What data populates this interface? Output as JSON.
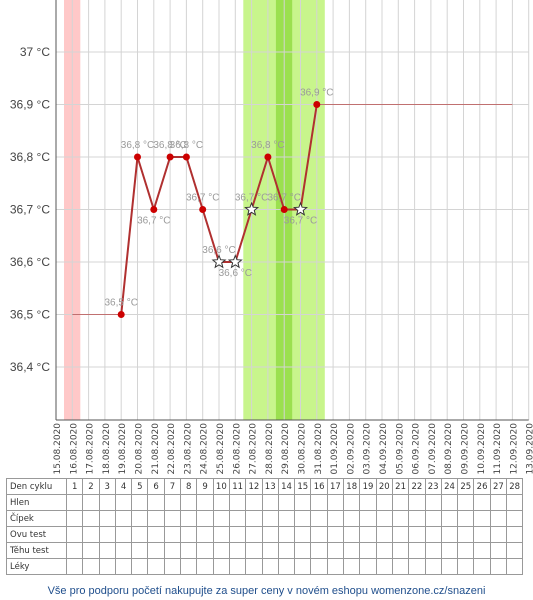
{
  "chart_data": {
    "type": "line",
    "y_axis": {
      "ticks": [
        "37 °C",
        "36,9 °C",
        "36,8 °C",
        "36,7 °C",
        "36,6 °C",
        "36,5 °C",
        "36,4 °C"
      ],
      "min": 36.3,
      "max": 37.1
    },
    "x_dates": [
      "15.08.2020",
      "16.08.2020",
      "17.08.2020",
      "18.08.2020",
      "19.08.2020",
      "20.08.2020",
      "21.08.2020",
      "22.08.2020",
      "23.08.2020",
      "24.08.2020",
      "25.08.2020",
      "26.08.2020",
      "27.08.2020",
      "28.08.2020",
      "29.08.2020",
      "30.08.2020",
      "31.08.2020",
      "01.09.2020",
      "02.09.2020",
      "03.09.2020",
      "04.09.2020",
      "05.09.2020",
      "06.09.2020",
      "07.09.2020",
      "08.09.2020",
      "09.09.2020",
      "10.09.2020",
      "11.09.2020",
      "12.09.2020",
      "13.09.2020"
    ],
    "series": [
      {
        "values": [
          {
            "date": "19.08.2020",
            "value": 36.5,
            "label": "36,5 °C",
            "marker": "dot"
          },
          {
            "date": "20.08.2020",
            "value": 36.8,
            "label": "36,8 °C",
            "marker": "dot"
          },
          {
            "date": "21.08.2020",
            "value": 36.7,
            "label": "36,7 °C",
            "marker": "dot"
          },
          {
            "date": "22.08.2020",
            "value": 36.8,
            "label": "36,8 °C",
            "marker": "dot"
          },
          {
            "date": "23.08.2020",
            "value": 36.8,
            "label": "36,8 °C",
            "marker": "dot"
          },
          {
            "date": "24.08.2020",
            "value": 36.7,
            "label": "36,7 °C",
            "marker": "dot"
          },
          {
            "date": "25.08.2020",
            "value": 36.6,
            "label": "36,6 °C",
            "marker": "star"
          },
          {
            "date": "26.08.2020",
            "value": 36.6,
            "label": "36,6 °C",
            "marker": "star"
          },
          {
            "date": "27.08.2020",
            "value": 36.7,
            "label": "36,7 °C",
            "marker": "star"
          },
          {
            "date": "28.08.2020",
            "value": 36.8,
            "label": "36,8 °C",
            "marker": "dot"
          },
          {
            "date": "29.08.2020",
            "value": 36.7,
            "label": "36,7 °C",
            "marker": "dot"
          },
          {
            "date": "30.08.2020",
            "value": 36.7,
            "label": "36,7 °C",
            "marker": "star"
          },
          {
            "date": "31.08.2020",
            "value": 36.9,
            "label": "36,9 °C",
            "marker": "dot"
          }
        ]
      }
    ],
    "baselines": [
      {
        "from": "16.08.2020",
        "to": "19.08.2020",
        "value": 36.5
      },
      {
        "from": "31.08.2020",
        "to": "12.09.2020",
        "value": 36.9
      }
    ],
    "bands": [
      {
        "from": "15.08.2020",
        "to": "16.08.2020",
        "kind": "menstruation",
        "color": "#ffc8c8"
      },
      {
        "from": "26.08.2020",
        "to": "31.08.2020",
        "kind": "fertile",
        "color": "#c8f58c"
      },
      {
        "from": "28.08.2020",
        "to": "29.08.2020",
        "kind": "ovulation",
        "color": "#9be04f"
      }
    ],
    "line_color": "#b03030",
    "point_color": "#cc0000",
    "grid": true
  },
  "table": {
    "header_label": "Den cyklu",
    "days": [
      "1",
      "2",
      "3",
      "4",
      "5",
      "6",
      "7",
      "8",
      "9",
      "10",
      "11",
      "12",
      "13",
      "14",
      "15",
      "16",
      "17",
      "18",
      "19",
      "20",
      "21",
      "22",
      "23",
      "24",
      "25",
      "26",
      "27",
      "28"
    ],
    "rows": [
      "Hlen",
      "Čípek",
      "Ovu test",
      "Těhu test",
      "Léky"
    ]
  },
  "footer": "Vše pro podporu početí nakupujte za super ceny v novém eshopu womenzone.cz/snazeni"
}
